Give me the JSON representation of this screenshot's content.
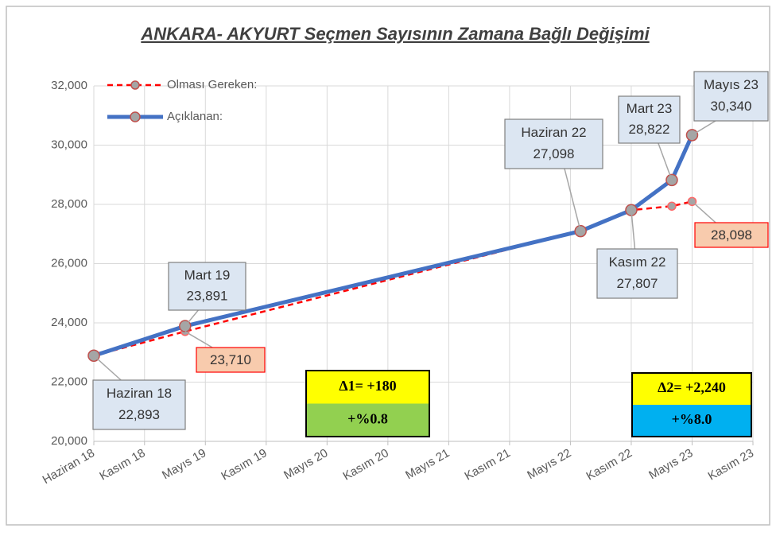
{
  "chart_data": {
    "type": "line",
    "title": "ANKARA- AKYURT Seçmen Sayısının Zamana Bağlı Değişimi",
    "x": [
      "2018-06",
      "2019-03",
      "2022-06",
      "2022-11",
      "2023-03",
      "2023-05"
    ],
    "point_labels": [
      "Haziran 18",
      "Mart 19",
      "Haziran 22",
      "Kasım 22",
      "Mart 23",
      "Mayıs 23"
    ],
    "series": [
      {
        "name": "Olması Gereken:",
        "color": "#ff0000",
        "dashed": true,
        "values": [
          22893,
          23710,
          27098,
          27807,
          27940,
          28098
        ],
        "value_labels": [
          null,
          "23,710",
          null,
          null,
          null,
          "28,098"
        ]
      },
      {
        "name": "Açıklanan:",
        "color": "#4472c4",
        "dashed": false,
        "values": [
          22893,
          23891,
          27098,
          27807,
          28822,
          30340
        ],
        "value_labels": [
          "22,893",
          "23,891",
          "27,098",
          "27,807",
          "28,822",
          "30,340"
        ]
      }
    ],
    "xlim": [
      "2018-06",
      "2023-11"
    ],
    "xticks": [
      {
        "value": "2018-06",
        "label": "Haziran 18"
      },
      {
        "value": "2018-11",
        "label": "Kasım 18"
      },
      {
        "value": "2019-05",
        "label": "Mayıs 19"
      },
      {
        "value": "2019-11",
        "label": "Kasım 19"
      },
      {
        "value": "2020-05",
        "label": "Mayıs 20"
      },
      {
        "value": "2020-11",
        "label": "Kasım 20"
      },
      {
        "value": "2021-05",
        "label": "Mayıs 21"
      },
      {
        "value": "2021-11",
        "label": "Kasım 21"
      },
      {
        "value": "2022-05",
        "label": "Mayıs 22"
      },
      {
        "value": "2022-11",
        "label": "Kasım 22"
      },
      {
        "value": "2023-05",
        "label": "Mayıs 23"
      },
      {
        "value": "2023-11",
        "label": "Kasım 23"
      }
    ],
    "ylim": [
      20000,
      32000
    ],
    "yticks": [
      {
        "value": 20000,
        "label": "20,000"
      },
      {
        "value": 22000,
        "label": "22,000"
      },
      {
        "value": 24000,
        "label": "24,000"
      },
      {
        "value": 26000,
        "label": "26,000"
      },
      {
        "value": 28000,
        "label": "28,000"
      },
      {
        "value": 30000,
        "label": "30,000"
      },
      {
        "value": 32000,
        "label": "32,000"
      }
    ],
    "grid": true,
    "legend": "upper left",
    "annotations": [
      {
        "text": "Δ1= +180",
        "subtext": "+%0.8",
        "color": "#92d050"
      },
      {
        "text": "Δ2= +2,240",
        "subtext": "+%8.0",
        "color": "#00b0f0"
      }
    ]
  }
}
